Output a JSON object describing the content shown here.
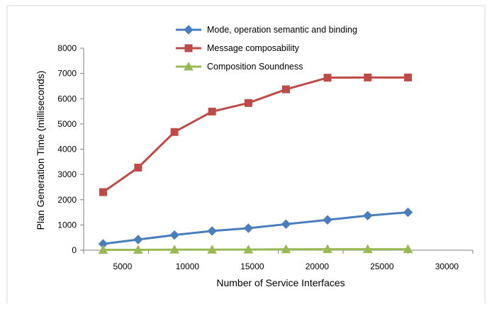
{
  "chart_data": {
    "type": "line",
    "title": "",
    "xlabel": "Number of Service Interfaces",
    "ylabel": "Plan Generation Time (milliseconds)",
    "xlim": [
      2000,
      32000
    ],
    "ylim": [
      0,
      8000
    ],
    "x_ticks": [
      5000,
      10000,
      15000,
      20000,
      25000,
      30000
    ],
    "y_ticks": [
      0,
      1000,
      2000,
      3000,
      4000,
      5000,
      6000,
      7000,
      8000
    ],
    "x": [
      3500,
      6200,
      9000,
      11900,
      14700,
      17600,
      20800,
      23900,
      27000
    ],
    "grid": false,
    "legend_position": "top",
    "series": [
      {
        "name": "Mode, operation semantic and binding",
        "color": "#4A7EBB",
        "marker": "diamond",
        "values": [
          250,
          420,
          600,
          760,
          870,
          1030,
          1200,
          1370,
          1500
        ]
      },
      {
        "name": "Message composability",
        "color": "#BE4B48",
        "marker": "square",
        "values": [
          2300,
          3270,
          4680,
          5490,
          5830,
          6370,
          6830,
          6840,
          6840
        ]
      },
      {
        "name": "Composition Soundness",
        "color": "#98B954",
        "marker": "triangle",
        "values": [
          10,
          15,
          20,
          20,
          25,
          35,
          40,
          40,
          40
        ]
      }
    ]
  }
}
